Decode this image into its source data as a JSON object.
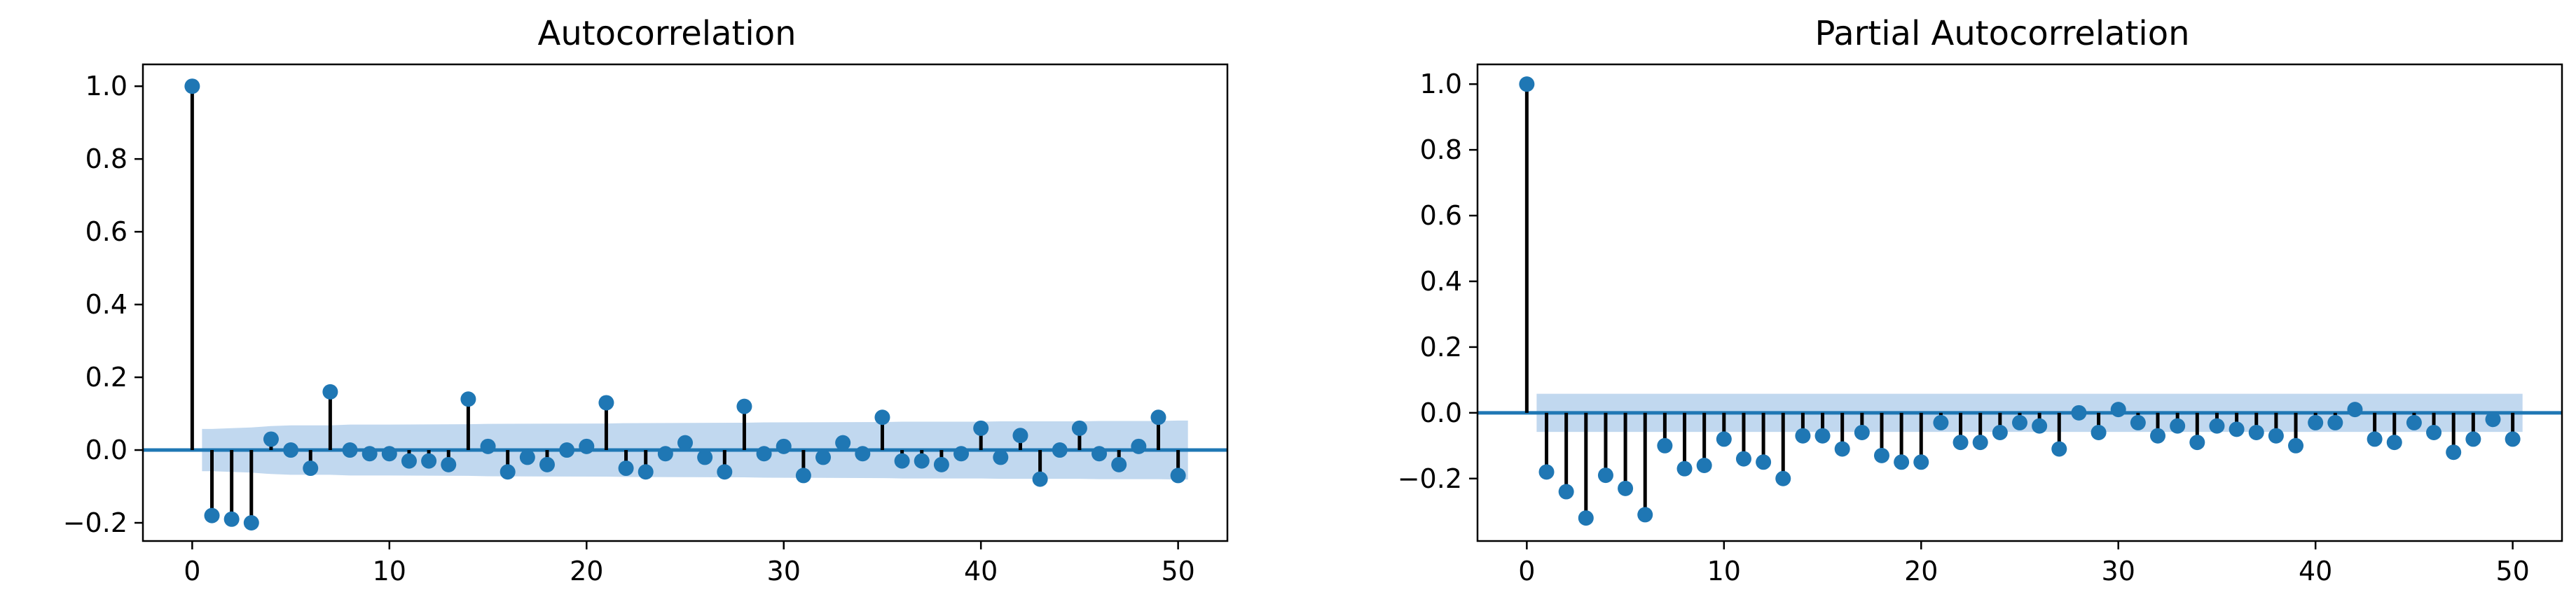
{
  "colors": {
    "marker": "#1f77b4",
    "stem": "#000000",
    "zero_line": "#1f77b4",
    "confidence_band": "#a6c8e8"
  },
  "chart_data": [
    {
      "type": "scatter",
      "subtype": "stem",
      "title": "Autocorrelation",
      "xlabel": "",
      "ylabel": "",
      "xlim": [
        -2.5,
        52.5
      ],
      "ylim": [
        -0.25,
        1.06
      ],
      "xticks": [
        0,
        10,
        20,
        30,
        40,
        50
      ],
      "xtick_labels": [
        "0",
        "10",
        "20",
        "30",
        "40",
        "50"
      ],
      "yticks": [
        -0.2,
        0.0,
        0.2,
        0.4,
        0.6,
        0.8,
        1.0
      ],
      "ytick_labels": [
        "−0.2",
        "0.0",
        "0.2",
        "0.4",
        "0.6",
        "0.8",
        "1.0"
      ],
      "grid": false,
      "x": [
        0,
        1,
        2,
        3,
        4,
        5,
        6,
        7,
        8,
        9,
        10,
        11,
        12,
        13,
        14,
        15,
        16,
        17,
        18,
        19,
        20,
        21,
        22,
        23,
        24,
        25,
        26,
        27,
        28,
        29,
        30,
        31,
        32,
        33,
        34,
        35,
        36,
        37,
        38,
        39,
        40,
        41,
        42,
        43,
        44,
        45,
        46,
        47,
        48,
        49,
        50
      ],
      "values": [
        1.0,
        -0.18,
        -0.19,
        -0.2,
        0.03,
        0.0,
        -0.05,
        0.16,
        0.0,
        -0.01,
        -0.01,
        -0.03,
        -0.03,
        -0.04,
        0.14,
        0.01,
        -0.06,
        -0.02,
        -0.04,
        0.0,
        0.01,
        0.13,
        -0.05,
        -0.06,
        -0.01,
        0.02,
        -0.02,
        -0.06,
        0.12,
        -0.01,
        0.01,
        -0.07,
        -0.02,
        0.02,
        -0.01,
        0.09,
        -0.03,
        -0.03,
        -0.04,
        -0.01,
        0.06,
        -0.02,
        0.04,
        -0.08,
        0.0,
        0.06,
        -0.01,
        -0.04,
        0.01,
        0.09,
        -0.07
      ],
      "confidence_band": {
        "x": [
          0.5,
          1,
          2,
          3,
          4,
          5,
          6,
          7,
          8,
          10,
          14,
          15,
          21,
          22,
          28,
          29,
          35,
          36,
          40,
          41,
          45,
          46,
          49,
          50,
          50.5
        ],
        "upper": [
          0.058,
          0.058,
          0.06,
          0.062,
          0.066,
          0.068,
          0.068,
          0.068,
          0.07,
          0.07,
          0.071,
          0.072,
          0.073,
          0.074,
          0.075,
          0.076,
          0.077,
          0.078,
          0.078,
          0.079,
          0.079,
          0.08,
          0.08,
          0.081,
          0.081
        ]
      }
    },
    {
      "type": "scatter",
      "subtype": "stem",
      "title": "Partial Autocorrelation",
      "xlabel": "",
      "ylabel": "",
      "xlim": [
        -2.5,
        52.5
      ],
      "ylim": [
        -0.39,
        1.06
      ],
      "xticks": [
        0,
        10,
        20,
        30,
        40,
        50
      ],
      "xtick_labels": [
        "0",
        "10",
        "20",
        "30",
        "40",
        "50"
      ],
      "yticks": [
        -0.2,
        0.0,
        0.2,
        0.4,
        0.6,
        0.8,
        1.0
      ],
      "ytick_labels": [
        "−0.2",
        "0.0",
        "0.2",
        "0.4",
        "0.6",
        "0.8",
        "1.0"
      ],
      "grid": false,
      "x": [
        0,
        1,
        2,
        3,
        4,
        5,
        6,
        7,
        8,
        9,
        10,
        11,
        12,
        13,
        14,
        15,
        16,
        17,
        18,
        19,
        20,
        21,
        22,
        23,
        24,
        25,
        26,
        27,
        28,
        29,
        30,
        31,
        32,
        33,
        34,
        35,
        36,
        37,
        38,
        39,
        40,
        41,
        42,
        43,
        44,
        45,
        46,
        47,
        48,
        49,
        50
      ],
      "values": [
        1.0,
        -0.18,
        -0.24,
        -0.32,
        -0.19,
        -0.23,
        -0.31,
        -0.1,
        -0.17,
        -0.16,
        -0.08,
        -0.14,
        -0.15,
        -0.2,
        -0.07,
        -0.07,
        -0.11,
        -0.06,
        -0.13,
        -0.15,
        -0.15,
        -0.03,
        -0.09,
        -0.09,
        -0.06,
        -0.03,
        -0.04,
        -0.11,
        0.0,
        -0.06,
        0.01,
        -0.03,
        -0.07,
        -0.04,
        -0.09,
        -0.04,
        -0.05,
        -0.06,
        -0.07,
        -0.1,
        -0.03,
        -0.03,
        0.01,
        -0.08,
        -0.09,
        -0.03,
        -0.06,
        -0.12,
        -0.08,
        -0.02,
        -0.08
      ],
      "confidence_band": {
        "x": [
          0.5,
          50.5
        ],
        "upper": [
          0.058,
          0.058
        ]
      }
    }
  ]
}
